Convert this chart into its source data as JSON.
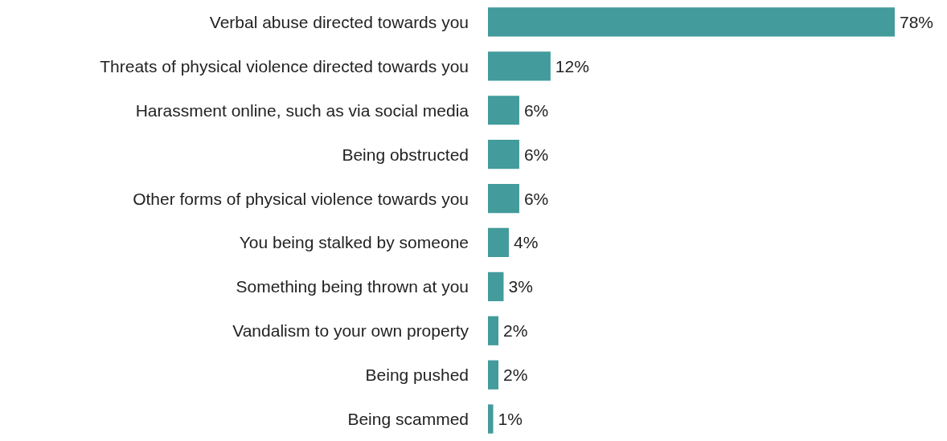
{
  "chart_data": {
    "type": "bar",
    "orientation": "horizontal",
    "categories": [
      "Verbal abuse directed towards you",
      "Threats of physical violence directed towards you",
      "Harassment online, such as via social media",
      "Being obstructed",
      "Other forms of physical violence towards you",
      "You being stalked by someone",
      "Something being thrown at you",
      "Vandalism to your own property",
      "Being pushed",
      "Being scammed"
    ],
    "values": [
      78,
      12,
      6,
      6,
      6,
      4,
      3,
      2,
      2,
      1
    ],
    "value_labels": [
      "78%",
      "12%",
      "6%",
      "6%",
      "6%",
      "4%",
      "3%",
      "2%",
      "2%",
      "1%"
    ],
    "color": "#439b9b"
  }
}
